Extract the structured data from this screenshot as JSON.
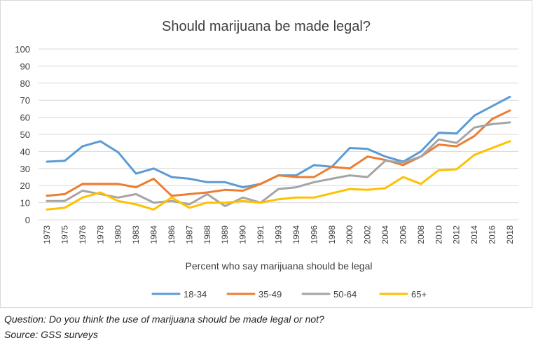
{
  "chart_data": {
    "type": "line",
    "title": "Should marijuana be made legal?",
    "xlabel": "Percent who say marijuana should be legal",
    "ylabel": "",
    "ylim": [
      0,
      100
    ],
    "yticks": [
      0,
      10,
      20,
      30,
      40,
      50,
      60,
      70,
      80,
      90,
      100
    ],
    "grid": true,
    "legend_position": "bottom",
    "categories": [
      "1973",
      "1975",
      "1976",
      "1978",
      "1980",
      "1983",
      "1984",
      "1986",
      "1987",
      "1988",
      "1989",
      "1990",
      "1991",
      "1993",
      "1994",
      "1996",
      "1998",
      "2000",
      "2002",
      "2004",
      "2006",
      "2008",
      "2010",
      "2012",
      "2014",
      "2016",
      "2018"
    ],
    "series": [
      {
        "name": "18-34",
        "color": "#5b9bd5",
        "values": [
          34,
          34.5,
          43,
          46,
          39.5,
          27,
          30,
          25,
          24,
          22,
          22,
          19,
          21,
          26,
          26,
          32,
          31,
          42,
          41.5,
          37,
          34,
          40,
          51,
          50.5,
          61,
          66.5,
          72
        ]
      },
      {
        "name": "35-49",
        "color": "#ed7d31",
        "values": [
          14,
          15,
          21,
          21,
          21,
          19,
          24,
          14,
          15,
          16,
          17.5,
          17,
          21,
          26,
          25,
          25,
          31,
          30,
          37,
          35,
          32,
          37,
          44,
          43,
          49,
          59,
          64
        ]
      },
      {
        "name": "50-64",
        "color": "#a5a5a5",
        "values": [
          11,
          11,
          17,
          15,
          13,
          15,
          10,
          11,
          9,
          15,
          8,
          13,
          10,
          18,
          19,
          22,
          24,
          26,
          25,
          34.5,
          33.5,
          37,
          47,
          45,
          54,
          56,
          57
        ]
      },
      {
        "name": "65+",
        "color": "#ffc000",
        "values": [
          6,
          7,
          13,
          16,
          11,
          9,
          6,
          13,
          7,
          10,
          10,
          11,
          10,
          12,
          13,
          13,
          15.5,
          18,
          17.5,
          18.5,
          25,
          21,
          29,
          29.5,
          38,
          42,
          46
        ]
      }
    ]
  },
  "notes": {
    "question": "Question: Do you think the use of marijuana should be made legal or not?",
    "source": "Source: GSS surveys"
  }
}
